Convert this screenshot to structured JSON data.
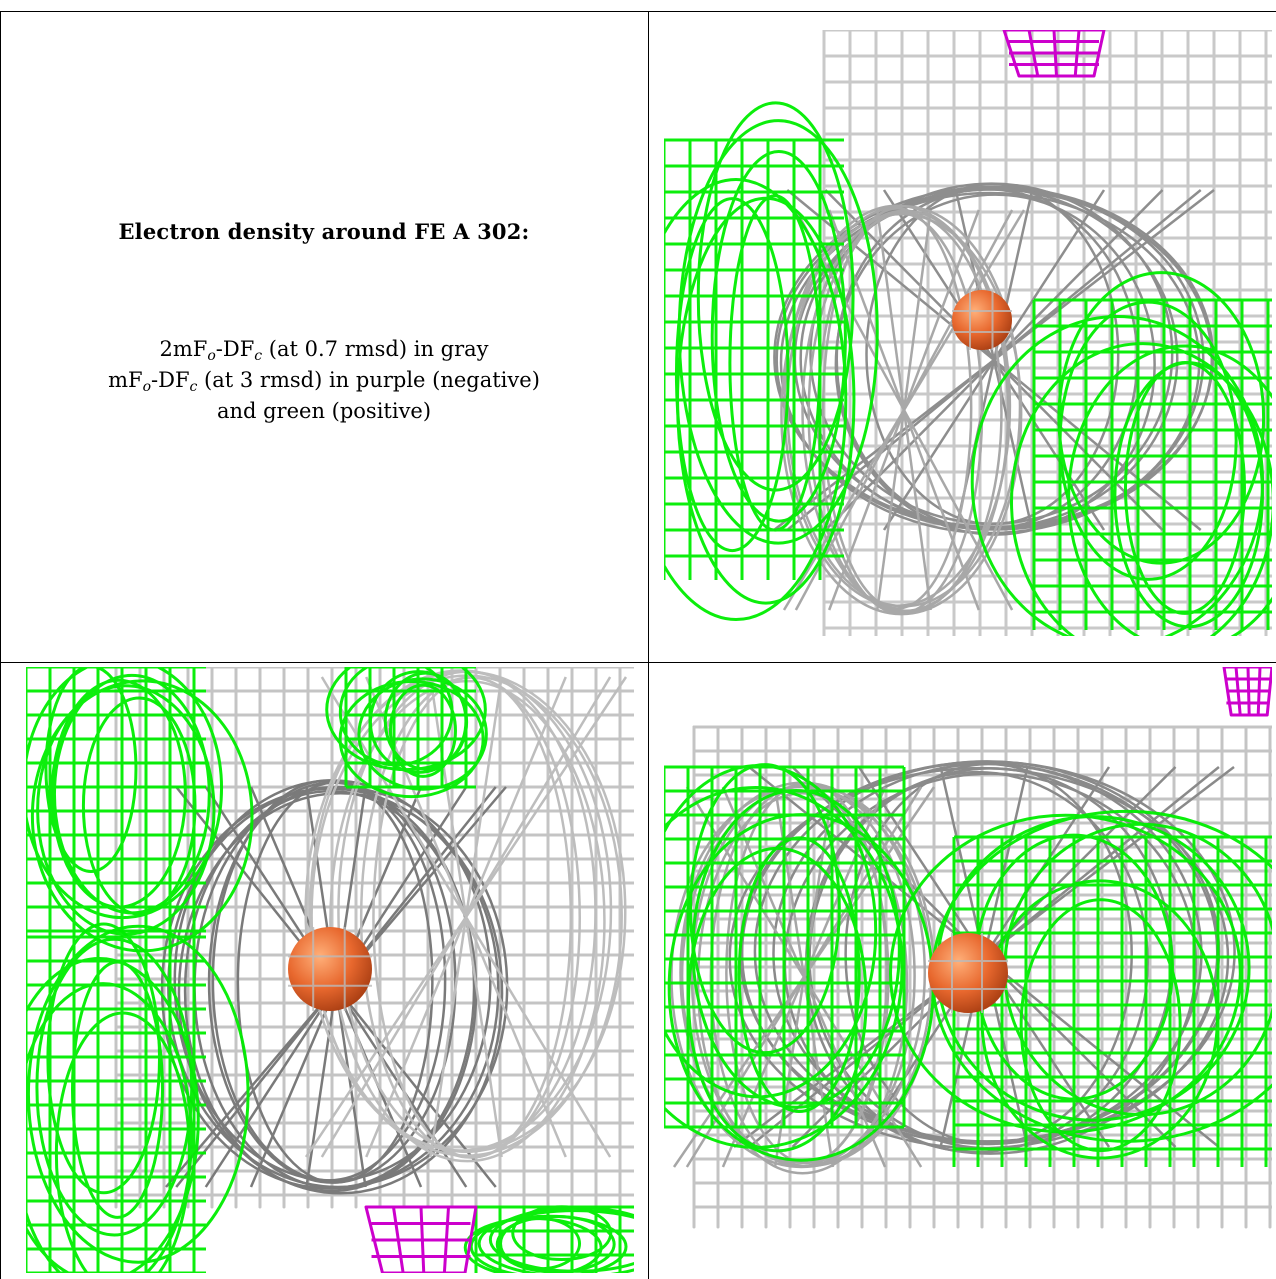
{
  "caption": {
    "title": "Electron density around FE A 302:",
    "line1": {
      "prefix": "2mF",
      "sub_o": "o",
      "mid": "-DF",
      "sub_c": "c",
      "suffix": " (at 0.7 rmsd) in gray"
    },
    "line2": {
      "prefix": "mF",
      "sub_o": "o",
      "mid": "-DF",
      "sub_c": "c",
      "suffix": " (at 3 rmsd) in purple (negative)"
    },
    "line3": "and green (positive)"
  },
  "colors": {
    "gray_mesh": "#b8b8b8",
    "dark_mesh": "#6e6e6e",
    "green_mesh": "#00ee00",
    "purple_mesh": "#cc00cc",
    "fe_atom": "#e8682e",
    "border": "#000000"
  },
  "panels": [
    {
      "id": "view-top-right",
      "atom": "FE",
      "negative_blob": "top"
    },
    {
      "id": "view-bottom-left",
      "atom": "FE",
      "negative_blob": "bottom"
    },
    {
      "id": "view-bottom-right",
      "atom": "FE",
      "negative_blob": "top-right"
    }
  ]
}
